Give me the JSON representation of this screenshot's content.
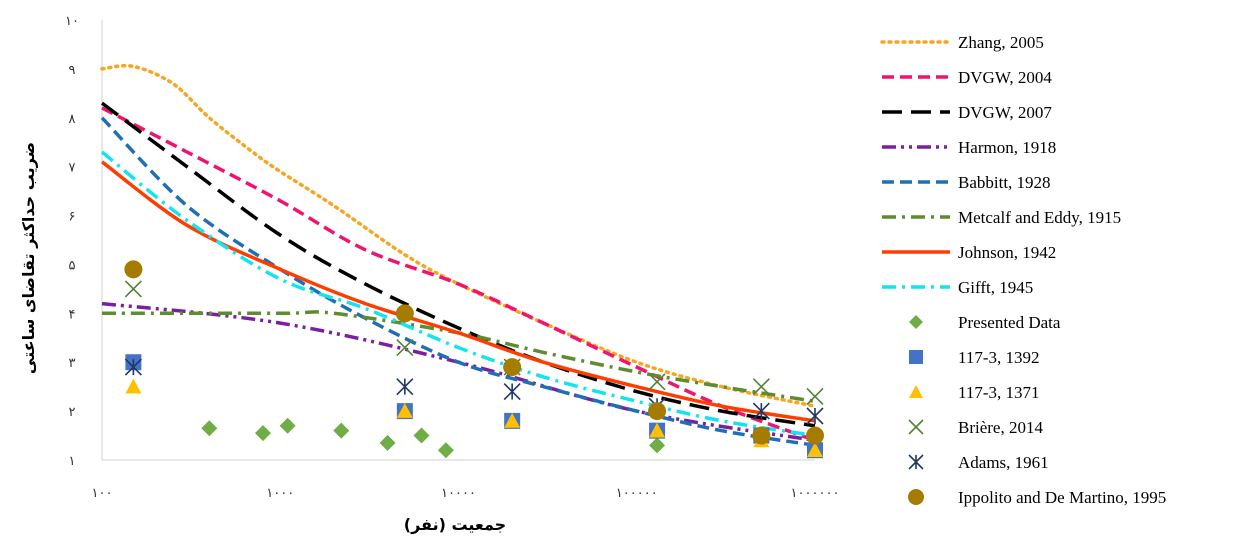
{
  "chart_data": {
    "type": "line",
    "x_scale": "log",
    "xlim": [
      100,
      1000000
    ],
    "ylim": [
      1,
      10
    ],
    "grid": false,
    "legend_position": "right",
    "xlabel": "جمعیت (نفر)",
    "ylabel": "ضریب حداکثر تقاضای ساعتی",
    "x_tick_labels": [
      "۱۰۰",
      "۱۰۰۰",
      "۱۰۰۰۰",
      "۱۰۰۰۰۰",
      "۱۰۰۰۰۰۰"
    ],
    "x_tick_values": [
      100,
      1000,
      10000,
      100000,
      1000000
    ],
    "y_tick_labels": [
      "۱",
      "۲",
      "۳",
      "۴",
      "۵",
      "۶",
      "۷",
      "۸",
      "۹",
      "۱۰"
    ],
    "y_tick_values": [
      1,
      2,
      3,
      4,
      5,
      6,
      7,
      8,
      9,
      10
    ],
    "line_series": [
      {
        "name": "Zhang, 2005",
        "color": "#F5A623",
        "dash": "dot",
        "x": [
          100,
          150,
          250,
          400,
          700,
          1000,
          2000,
          5000,
          10000,
          30000,
          100000,
          300000,
          1000000
        ],
        "y": [
          9.0,
          9.05,
          8.7,
          8.0,
          7.3,
          6.9,
          6.2,
          5.2,
          4.6,
          3.8,
          3.0,
          2.5,
          2.1
        ]
      },
      {
        "name": "DVGW, 2004",
        "color": "#F0146E",
        "dash": "dash",
        "x": [
          100,
          300,
          1000,
          3000,
          10000,
          30000,
          100000,
          300000,
          1000000
        ],
        "y": [
          8.2,
          7.3,
          6.3,
          5.3,
          4.6,
          3.8,
          2.9,
          2.1,
          1.4
        ]
      },
      {
        "name": "DVGW, 2007",
        "color": "#000000",
        "dash": "longdash",
        "x": [
          100,
          300,
          1000,
          3000,
          10000,
          30000,
          100000,
          300000,
          1000000
        ],
        "y": [
          8.3,
          7.0,
          5.6,
          4.6,
          3.7,
          3.0,
          2.4,
          2.0,
          1.7
        ]
      },
      {
        "name": "Harmon, 1918",
        "color": "#7B1FA2",
        "dash": "dashdotdot",
        "x": [
          100,
          1000,
          10000,
          100000,
          1000000
        ],
        "y": [
          4.2,
          3.8,
          3.0,
          2.0,
          1.4
        ]
      },
      {
        "name": "Babbitt, 1928",
        "color": "#1F6FB5",
        "dash": "dash",
        "x": [
          100,
          300,
          1000,
          3000,
          10000,
          30000,
          100000,
          300000,
          1000000
        ],
        "y": [
          8.0,
          6.2,
          4.9,
          3.9,
          3.0,
          2.5,
          2.0,
          1.6,
          1.3
        ]
      },
      {
        "name": "Metcalf and Eddy, 1915",
        "color": "#5E8C31",
        "dash": "dashdot",
        "x": [
          100,
          1000,
          2000,
          10000,
          30000,
          100000,
          300000,
          1000000
        ],
        "y": [
          4.0,
          4.0,
          4.0,
          3.6,
          3.2,
          2.8,
          2.5,
          2.2
        ]
      },
      {
        "name": "Johnson, 1942",
        "color": "#FF3D00",
        "dash": "solid",
        "x": [
          100,
          300,
          1000,
          3000,
          10000,
          30000,
          100000,
          300000,
          1000000
        ],
        "y": [
          7.1,
          5.8,
          4.9,
          4.2,
          3.6,
          3.0,
          2.5,
          2.1,
          1.8
        ]
      },
      {
        "name": "Gifft, 1945",
        "color": "#13E4F0",
        "dash": "dashdot",
        "x": [
          100,
          300,
          1000,
          3000,
          10000,
          30000,
          100000,
          300000,
          1000000
        ],
        "y": [
          7.3,
          5.9,
          4.7,
          4.1,
          3.3,
          2.7,
          2.2,
          1.8,
          1.5
        ]
      }
    ],
    "scatter_series": [
      {
        "name": "Presented Data",
        "color": "#70AD47",
        "marker": "diamond",
        "x": [
          400,
          800,
          1100,
          2200,
          4000,
          6200,
          8500,
          130000
        ],
        "y": [
          1.65,
          1.55,
          1.7,
          1.6,
          1.35,
          1.5,
          1.2,
          1.3
        ]
      },
      {
        "name": "117-3, 1392",
        "color": "#4472C4",
        "marker": "square",
        "x": [
          150,
          5000,
          20000,
          130000,
          500000,
          1000000
        ],
        "y": [
          3.0,
          2.0,
          1.8,
          1.6,
          1.5,
          1.2
        ]
      },
      {
        "name": "117-3, 1371",
        "color": "#FFC000",
        "marker": "triangle",
        "x": [
          150,
          5000,
          20000,
          130000,
          500000,
          1000000
        ],
        "y": [
          2.5,
          2.0,
          1.8,
          1.6,
          1.4,
          1.2
        ]
      },
      {
        "name": "Brière, 2014",
        "color": "#548235",
        "marker": "x",
        "x": [
          150,
          5000,
          20000,
          130000,
          500000,
          1000000
        ],
        "y": [
          4.5,
          3.3,
          2.9,
          2.6,
          2.5,
          2.3
        ]
      },
      {
        "name": "Adams, 1961",
        "color": "#203864",
        "marker": "asterisk",
        "x": [
          150,
          5000,
          20000,
          130000,
          500000,
          1000000
        ],
        "y": [
          2.9,
          2.5,
          2.4,
          2.1,
          2.0,
          1.9
        ]
      },
      {
        "name": "Ippolito and De Martino, 1995",
        "color": "#A67C00",
        "marker": "circle",
        "x": [
          150,
          5000,
          20000,
          130000,
          500000,
          1000000
        ],
        "y": [
          4.9,
          4.0,
          2.9,
          2.0,
          1.5,
          1.5
        ]
      }
    ]
  }
}
